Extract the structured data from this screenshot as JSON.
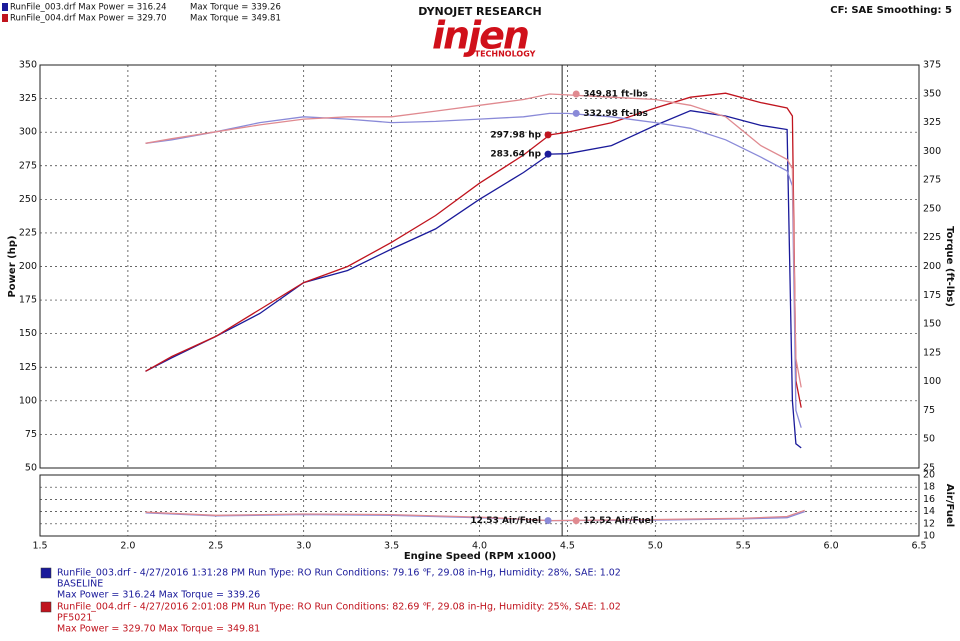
{
  "header": {
    "brand": "DYNOJET RESEARCH",
    "logo": "injen",
    "logo_sub": "TECHNOLOGY",
    "settings": "CF: SAE  Smoothing: 5",
    "legend": [
      {
        "run": "RunFile_003.drf Max Power = 316.24",
        "torque": "Max Torque = 339.26",
        "color": "#1a1a9a"
      },
      {
        "run": "RunFile_004.drf Max Power = 329.70",
        "torque": "Max Torque = 349.81",
        "color": "#c0141e"
      }
    ]
  },
  "chart_data": [
    {
      "type": "line",
      "ylabel": "Power (hp)",
      "y2label": "Torque (ft-lbs)",
      "grid": true,
      "x": [
        2.1,
        2.25,
        2.5,
        2.75,
        3.0,
        3.25,
        3.5,
        3.75,
        4.0,
        4.25,
        4.4,
        4.5,
        4.75,
        5.0,
        5.2,
        5.4,
        5.6,
        5.75,
        5.78,
        5.8,
        5.83
      ],
      "xlim": [
        1.5,
        6.5
      ],
      "xticks": [
        1.5,
        2,
        2.5,
        3,
        3.5,
        4,
        4.5,
        5,
        5.5,
        6,
        6.5
      ],
      "ylim": [
        50,
        350
      ],
      "yticks": [
        50,
        75,
        100,
        125,
        150,
        175,
        200,
        225,
        250,
        275,
        300,
        325,
        350
      ],
      "y2lim": [
        25,
        375
      ],
      "y2ticks": [
        25,
        50,
        75,
        100,
        125,
        150,
        175,
        200,
        225,
        250,
        275,
        300,
        325,
        350,
        375
      ],
      "cursor": 4.47,
      "series": [
        {
          "color": "#1a1a9a",
          "values": [
            122,
            132,
            148,
            165,
            188,
            197,
            213,
            228,
            250,
            270,
            283.64,
            284,
            290,
            305,
            316,
            312,
            305,
            302,
            100,
            68,
            65
          ]
        },
        {
          "color": "#c0141e",
          "values": [
            122,
            133,
            148,
            168,
            188,
            200,
            218,
            238,
            262,
            283,
            297.98,
            300,
            307,
            318,
            326,
            329,
            322,
            318,
            312,
            115,
            95
          ]
        },
        {
          "color": "#8a8ad8",
          "axis": "y2",
          "values": [
            307,
            310,
            317,
            325,
            330,
            328,
            325,
            326,
            328,
            330,
            332.98,
            333,
            330,
            325,
            320,
            310,
            295,
            283,
            270,
            75,
            60
          ]
        },
        {
          "color": "#e08a90",
          "axis": "y2",
          "values": [
            307,
            311,
            317,
            323,
            328,
            330,
            330,
            335,
            340,
            345,
            349.81,
            349,
            347,
            345,
            340,
            330,
            305,
            293,
            285,
            120,
            95
          ]
        }
      ],
      "annotations": [
        {
          "label": "349.81 ft-lbs",
          "value": 349.81,
          "x": 4.55,
          "axis": "y2",
          "side": "right",
          "color": "#e08a90"
        },
        {
          "label": "332.98 ft-lbs",
          "value": 332.98,
          "x": 4.55,
          "axis": "y2",
          "side": "right",
          "color": "#8a8ad8"
        },
        {
          "label": "297.98 hp",
          "value": 297.98,
          "x": 4.39,
          "axis": "y",
          "side": "left",
          "color": "#c0141e"
        },
        {
          "label": "283.64 hp",
          "value": 283.64,
          "x": 4.39,
          "axis": "y",
          "side": "left",
          "color": "#1a1a9a"
        }
      ]
    },
    {
      "type": "line",
      "xlabel": "Engine Speed (RPM x1000)",
      "y2label": "Air/Fuel",
      "grid": true,
      "x": [
        2.1,
        2.5,
        3.0,
        3.5,
        4.0,
        4.4,
        5.0,
        5.5,
        5.75,
        5.85
      ],
      "xlim": [
        1.5,
        6.5
      ],
      "xticks": [
        1.5,
        {
          "value": 2,
          "label": "2.0"
        },
        2.5,
        {
          "value": 3,
          "label": "3.0"
        },
        3.5,
        {
          "value": 4,
          "label": "4.0"
        },
        4.5,
        {
          "value": 5,
          "label": "5.0"
        },
        5.5,
        {
          "value": 6,
          "label": "6.0"
        },
        6.5
      ],
      "y2lim": [
        10,
        20
      ],
      "y2ticks": [
        10,
        12,
        14,
        16,
        18,
        20
      ],
      "series": [
        {
          "color": "#8a8ad8",
          "axis": "y2",
          "values": [
            13.8,
            13.3,
            13.5,
            13.4,
            13.0,
            12.53,
            12.6,
            12.8,
            13.0,
            14.0
          ]
        },
        {
          "color": "#e08a90",
          "axis": "y2",
          "values": [
            13.9,
            13.4,
            13.6,
            13.5,
            13.1,
            12.52,
            12.7,
            12.9,
            13.2,
            14.2
          ]
        }
      ],
      "annotations": [
        {
          "label": "12.53 Air/Fuel",
          "value": 12.53,
          "x": 4.39,
          "axis": "y2",
          "side": "left",
          "color": "#8a8ad8"
        },
        {
          "label": "12.52 Air/Fuel",
          "value": 12.52,
          "x": 4.55,
          "axis": "y2",
          "side": "right",
          "color": "#e08a90"
        }
      ]
    }
  ],
  "footer": [
    {
      "color": "#1a1a9a",
      "line1": "RunFile_003.drf - 4/27/2016 1:31:28 PM  Run Type: RO  Run Conditions: 79.16 ℉, 29.08 in-Hg,  Humidity:  28%, SAE: 1.02",
      "line2": "BASELINE",
      "line3": "Max Power = 316.24  Max Torque = 339.26"
    },
    {
      "color": "#c0141e",
      "line1": "RunFile_004.drf - 4/27/2016 2:01:08 PM  Run Type: RO  Run Conditions: 82.69 ℉, 29.08 in-Hg,  Humidity:  25%, SAE: 1.02",
      "line2": "PF5021",
      "line3": "Max Power = 329.70  Max Torque = 349.81"
    }
  ]
}
